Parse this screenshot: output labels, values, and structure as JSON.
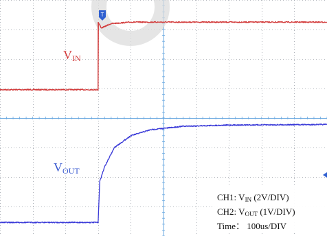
{
  "chart_data": {
    "type": "line",
    "title": "",
    "x_unit": "us",
    "x_range": [
      0,
      1000
    ],
    "grid": {
      "x_divisions": 10,
      "y_divisions": 8,
      "shown": true,
      "style": "dotted"
    },
    "trigger_marker_label": "T",
    "series": [
      {
        "name_main": "V",
        "name_sub": "IN",
        "channel": "CH1",
        "color": "#d23a3a",
        "volts_per_div": 2,
        "x": [
          0,
          300,
          300,
          310,
          340,
          400,
          1000
        ],
        "level_divs": [
          4.96,
          4.96,
          7.25,
          7.05,
          7.2,
          7.25,
          7.25
        ]
      },
      {
        "name_main": "V",
        "name_sub": "OUT",
        "channel": "CH2",
        "color": "#3a3ad8",
        "volts_per_div": 1,
        "x": [
          0,
          300,
          305,
          320,
          350,
          400,
          460,
          560,
          700,
          1000
        ],
        "level_divs": [
          0.46,
          0.46,
          1.85,
          2.35,
          3.0,
          3.4,
          3.6,
          3.72,
          3.76,
          3.78
        ]
      }
    ],
    "settings": {
      "ch1": {
        "prefix": "CH1: V",
        "sub": "IN",
        "suffix": " (2V/DIV)"
      },
      "ch2": {
        "prefix": "CH2: V",
        "sub": "OUT",
        "suffix": " (1V/DIV)"
      },
      "time": "Time：  100us/DIV"
    },
    "colors": {
      "background": "#ffffff",
      "grid": "#9aa0a8",
      "center_axes": "#6aa8e0",
      "watermark": "#dcdcdc"
    }
  }
}
